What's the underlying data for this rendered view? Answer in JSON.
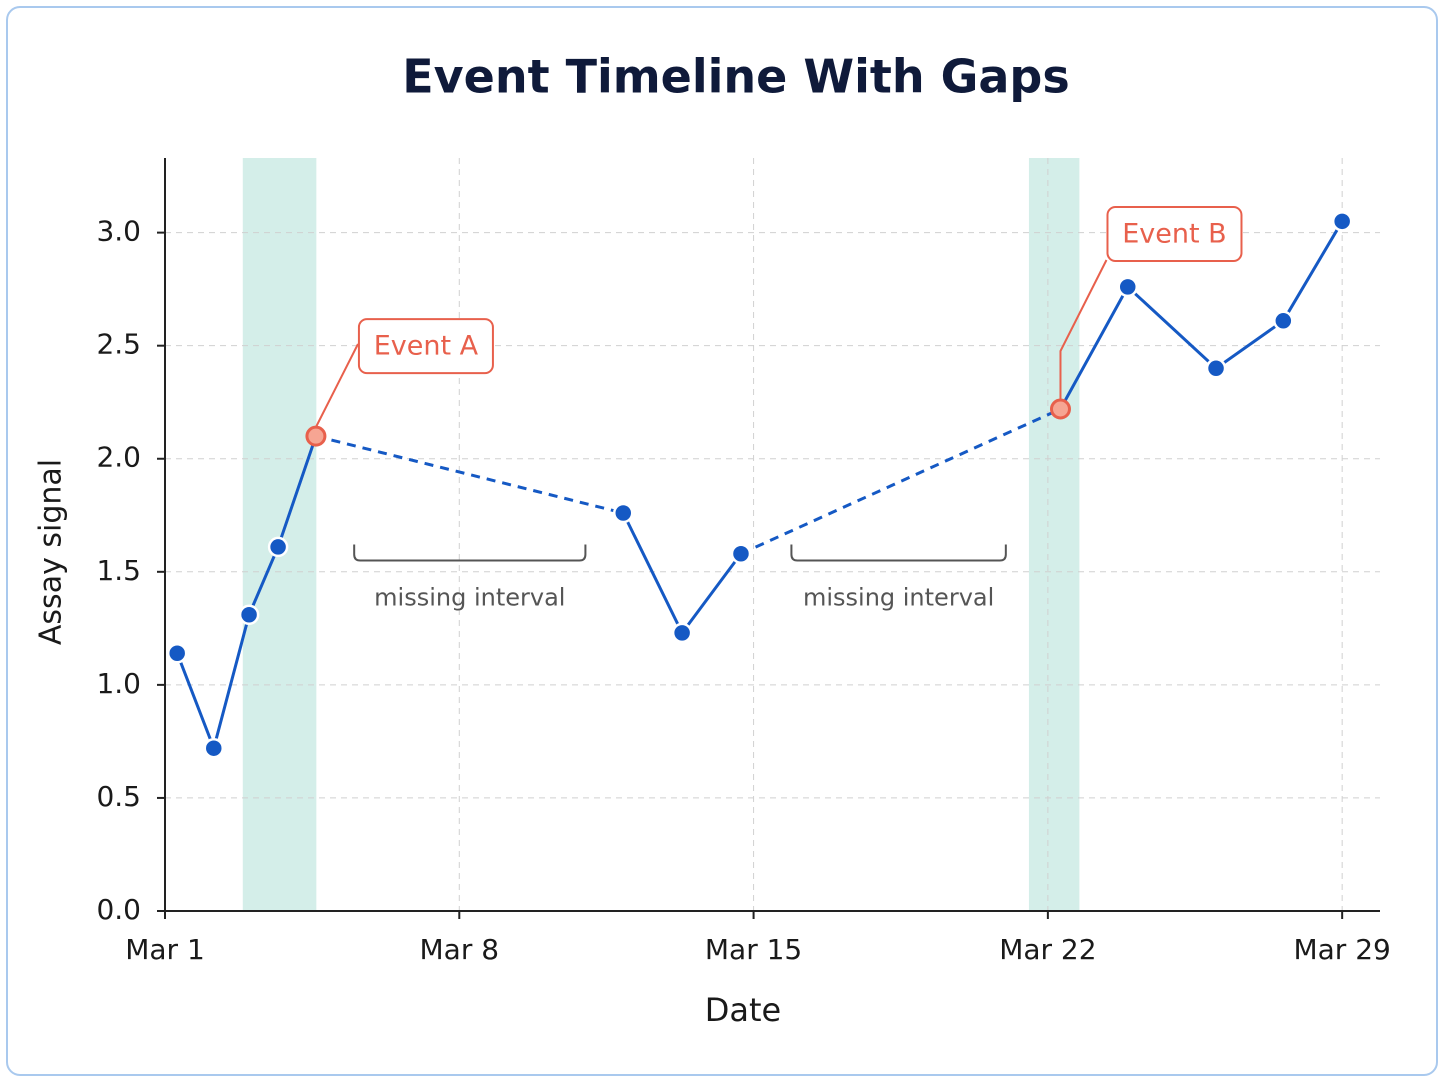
{
  "chart_data": {
    "type": "line",
    "title": "Event Timeline With Gaps",
    "x_label": "Date",
    "y_label": "Assay signal",
    "x": [
      1.29,
      2.16,
      3.0,
      3.69,
      4.59,
      11.9,
      13.3,
      14.7,
      22.3,
      23.9,
      26.0,
      27.6,
      29.0
    ],
    "values": [
      1.14,
      0.72,
      1.31,
      1.61,
      2.1,
      1.76,
      1.23,
      1.58,
      2.22,
      2.76,
      2.4,
      2.61,
      3.05
    ],
    "color": "#1559c4",
    "gap_after": [
      4,
      7
    ],
    "xlim": [
      1,
      29.9
    ],
    "xticks": [
      {
        "value": 1,
        "label": "Mar 1"
      },
      {
        "value": 8,
        "label": "Mar 8"
      },
      {
        "value": 15,
        "label": "Mar 15"
      },
      {
        "value": 22,
        "label": "Mar 22"
      },
      {
        "value": 29,
        "label": "Mar 29"
      }
    ],
    "ylim": [
      0,
      3.33
    ],
    "yticks": [
      {
        "value": 0,
        "label": "0.0"
      },
      0.5,
      {
        "value": 1,
        "label": "1.0"
      },
      1.5,
      {
        "value": 2,
        "label": "2.0"
      },
      2.5,
      {
        "value": 3,
        "label": "3.0"
      }
    ],
    "grid": true,
    "shaded_spans": [
      [
        2.85,
        4.6
      ],
      [
        21.55,
        22.75
      ]
    ],
    "shade_color": "#d4eee9",
    "event_color": "#e8604c",
    "events": [
      {
        "text": "Event A",
        "point": 4
      },
      {
        "text": "Event B",
        "point": 8
      }
    ],
    "brackets": [
      {
        "text": "missing interval",
        "x_range": [
          5.5,
          11.0
        ],
        "y": 1.55
      },
      {
        "text": "missing interval",
        "x_range": [
          15.9,
          21.0
        ],
        "y": 1.55
      }
    ]
  }
}
